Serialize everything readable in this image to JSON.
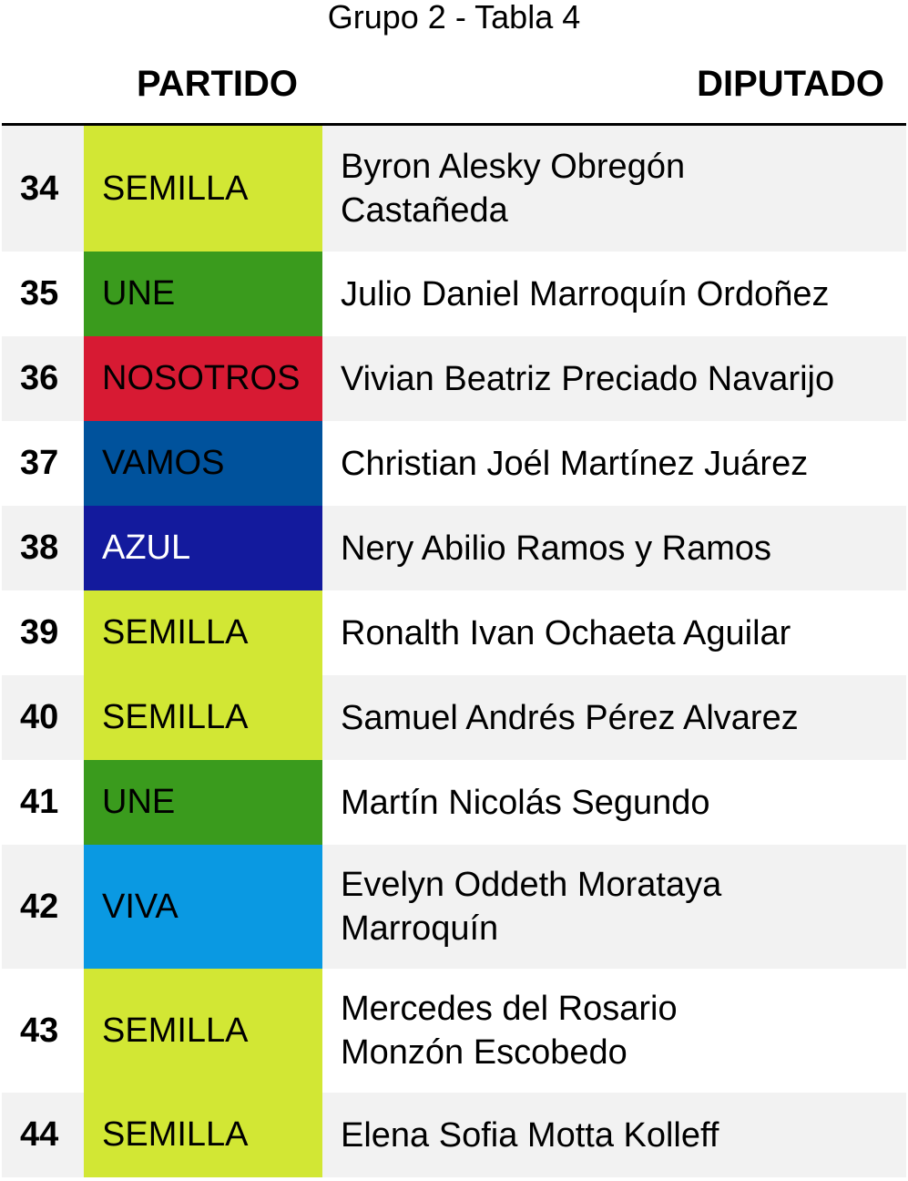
{
  "title": "Grupo 2 - Tabla 4",
  "header": {
    "partido": "PARTIDO",
    "diputado": "DIPUTADO"
  },
  "colors": {
    "SEMILLA": "#d2e734",
    "UNE": "#3a9b1d",
    "NOSOTROS": "#d71a33",
    "VAMOS": "#00529c",
    "AZUL": "#131a9d",
    "VIVA": "#0a99e2"
  },
  "rows": [
    {
      "num": "34",
      "party": "SEMILLA",
      "name": "Byron Alesky Obregón Castañeda",
      "two_line": true
    },
    {
      "num": "35",
      "party": "UNE",
      "name": "Julio Daniel Marroquín Ordoñez"
    },
    {
      "num": "36",
      "party": "NOSOTROS",
      "name": "Vivian Beatriz Preciado Navarijo"
    },
    {
      "num": "37",
      "party": "VAMOS",
      "name": "Christian Joél Martínez Juárez"
    },
    {
      "num": "38",
      "party": "AZUL",
      "name": "Nery Abilio Ramos y Ramos",
      "white_text": true
    },
    {
      "num": "39",
      "party": "SEMILLA",
      "name": "Ronalth Ivan Ochaeta Aguilar"
    },
    {
      "num": "40",
      "party": "SEMILLA",
      "name": "Samuel Andrés Pérez Alvarez"
    },
    {
      "num": "41",
      "party": "UNE",
      "name": "Martín Nicolás Segundo"
    },
    {
      "num": "42",
      "party": "VIVA",
      "name": "Evelyn Oddeth Morataya Marroquín",
      "two_line": true
    },
    {
      "num": "43",
      "party": "SEMILLA",
      "name": "Mercedes del Rosario Monzón Escobedo",
      "two_line": true
    },
    {
      "num": "44",
      "party": "SEMILLA",
      "name": "Elena Sofia Motta Kolleff"
    }
  ]
}
